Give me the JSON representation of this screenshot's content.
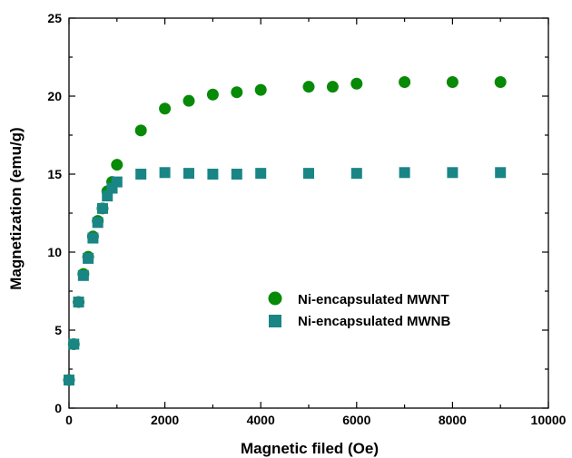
{
  "chart_data": {
    "type": "scatter",
    "title": "",
    "xlabel": "Magnetic filed (Oe)",
    "ylabel": "Magnetization (emu/g)",
    "xlim": [
      0,
      10000
    ],
    "ylim": [
      0,
      25
    ],
    "x_ticks": [
      0,
      2000,
      4000,
      6000,
      8000,
      10000
    ],
    "y_ticks": [
      0,
      5,
      10,
      15,
      20,
      25
    ],
    "x_tick_labels": [
      "0",
      "2000",
      "4000",
      "6000",
      "8000",
      "10000"
    ],
    "y_tick_labels": [
      "0",
      "5",
      "10",
      "15",
      "20",
      "25"
    ],
    "grid": false,
    "legend_position": "center-right",
    "series": [
      {
        "name": "Ni-encapsulated MWNT",
        "marker": "circle",
        "color": "#078a07",
        "points": [
          [
            0,
            1.8
          ],
          [
            100,
            4.1
          ],
          [
            200,
            6.8
          ],
          [
            300,
            8.6
          ],
          [
            400,
            9.7
          ],
          [
            500,
            11.0
          ],
          [
            600,
            12.0
          ],
          [
            700,
            12.8
          ],
          [
            800,
            13.9
          ],
          [
            900,
            14.5
          ],
          [
            1000,
            15.6
          ],
          [
            1500,
            17.8
          ],
          [
            2000,
            19.2
          ],
          [
            2500,
            19.7
          ],
          [
            3000,
            20.1
          ],
          [
            3500,
            20.25
          ],
          [
            4000,
            20.4
          ],
          [
            5000,
            20.6
          ],
          [
            5500,
            20.6
          ],
          [
            6000,
            20.8
          ],
          [
            7000,
            20.9
          ],
          [
            8000,
            20.9
          ],
          [
            9000,
            20.9
          ]
        ]
      },
      {
        "name": "Ni-encapsulated MWNB",
        "marker": "square",
        "color": "#1a8585",
        "points": [
          [
            0,
            1.8
          ],
          [
            100,
            4.1
          ],
          [
            200,
            6.8
          ],
          [
            300,
            8.5
          ],
          [
            400,
            9.6
          ],
          [
            500,
            10.9
          ],
          [
            600,
            11.9
          ],
          [
            700,
            12.8
          ],
          [
            800,
            13.6
          ],
          [
            900,
            14.1
          ],
          [
            1000,
            14.5
          ],
          [
            1500,
            15.0
          ],
          [
            2000,
            15.1
          ],
          [
            2500,
            15.05
          ],
          [
            3000,
            15.0
          ],
          [
            3500,
            15.0
          ],
          [
            4000,
            15.05
          ],
          [
            5000,
            15.05
          ],
          [
            6000,
            15.05
          ],
          [
            7000,
            15.1
          ],
          [
            8000,
            15.1
          ],
          [
            9000,
            15.1
          ]
        ]
      }
    ]
  }
}
